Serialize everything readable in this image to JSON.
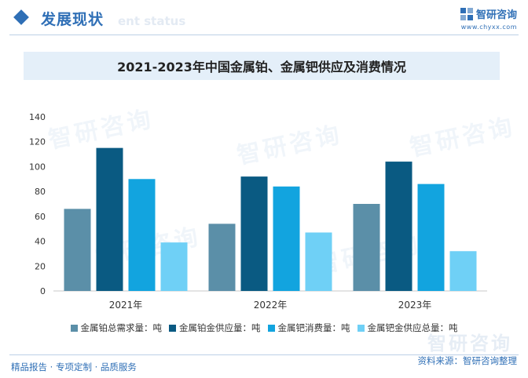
{
  "header": {
    "section_title": "发展现状",
    "section_subtitle": "ent status",
    "logo_name": "智研咨询",
    "logo_url": "www.chyxx.com"
  },
  "chart_data": {
    "type": "bar",
    "title": "2021-2023年中国金属铂、金属钯供应及消费情况",
    "categories": [
      "2021年",
      "2022年",
      "2023年"
    ],
    "series": [
      {
        "name": "金属铂总需求量：吨",
        "color": "#5b8fa8",
        "values": [
          66,
          54,
          70
        ]
      },
      {
        "name": "金属铂金供应量：吨",
        "color": "#0a5a82",
        "values": [
          115,
          92,
          104
        ]
      },
      {
        "name": "金属钯消费量：吨",
        "color": "#12a4df",
        "values": [
          90,
          84,
          86
        ]
      },
      {
        "name": "金属钯金供应总量：吨",
        "color": "#6fd0f6",
        "values": [
          39,
          47,
          32
        ]
      }
    ],
    "yticks": [
      0,
      20,
      40,
      60,
      80,
      100,
      120,
      140
    ],
    "ylim": [
      0,
      140
    ],
    "legend_position": "bottom",
    "grid": false
  },
  "watermark": {
    "text": "智研咨询"
  },
  "footer": {
    "left": "精品报告 · 专项定制 · 品质服务",
    "right": "资料来源：智研咨询整理"
  }
}
